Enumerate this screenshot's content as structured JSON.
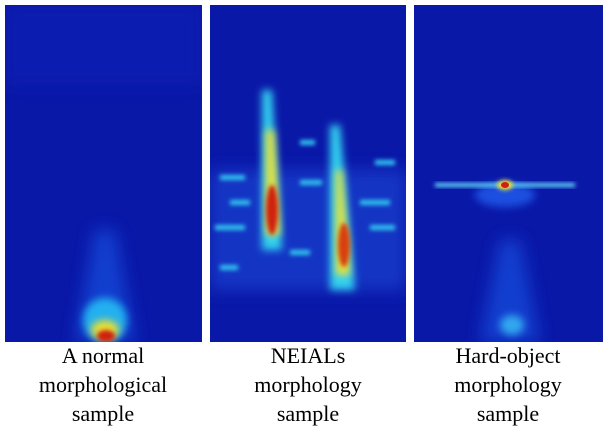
{
  "panels": [
    {
      "caption": [
        "A normal",
        "morphological",
        "sample"
      ]
    },
    {
      "caption": [
        "NEIALs",
        "morphology",
        "sample"
      ]
    },
    {
      "caption": [
        "Hard-object",
        "morphology",
        "sample"
      ]
    }
  ]
}
